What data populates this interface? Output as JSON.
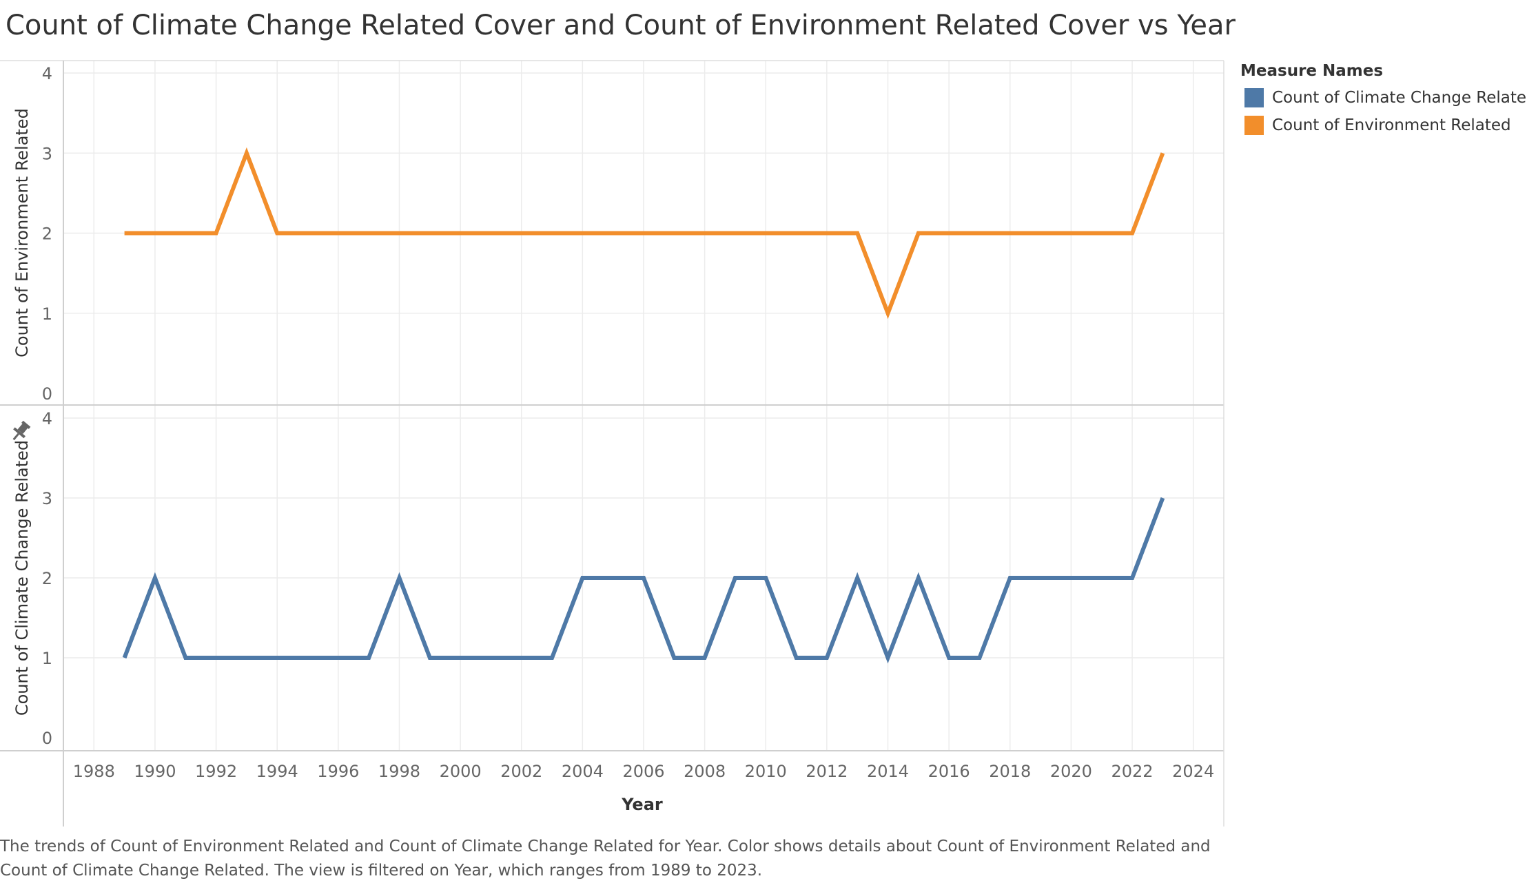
{
  "title": "Count of Climate Change Related Cover and Count of Environment Related Cover vs Year",
  "legend": {
    "title": "Measure Names",
    "items": [
      {
        "label": "Count of Climate Change Related",
        "color": "#4e79a7"
      },
      {
        "label": "Count of Environment Related",
        "color": "#f28e2b"
      }
    ]
  },
  "caption": [
    "The trends of Count of Environment Related and Count of Climate Change Related for Year.  Color shows details about Count of Environment Related and",
    "Count of Climate Change Related. The view is filtered on Year, which ranges from 1989 to 2023."
  ],
  "chart_data": {
    "type": "line",
    "xlabel": "Year",
    "xlim": [
      1987,
      2025
    ],
    "xticks": [
      1988,
      1990,
      1992,
      1994,
      1996,
      1998,
      2000,
      2002,
      2004,
      2006,
      2008,
      2010,
      2012,
      2014,
      2016,
      2018,
      2020,
      2022,
      2024
    ],
    "x": [
      1989,
      1990,
      1991,
      1992,
      1993,
      1994,
      1995,
      1996,
      1997,
      1998,
      1999,
      2000,
      2001,
      2002,
      2003,
      2004,
      2005,
      2006,
      2007,
      2008,
      2009,
      2010,
      2011,
      2012,
      2013,
      2014,
      2015,
      2016,
      2017,
      2018,
      2019,
      2020,
      2021,
      2022,
      2023
    ],
    "grid": true,
    "legend_position": "top-right",
    "panels": [
      {
        "ylabel": "Count of Environment Related",
        "ylim": [
          0,
          4
        ],
        "yticks": [
          0,
          1,
          2,
          3,
          4
        ],
        "series": [
          {
            "name": "Count of Environment Related",
            "color": "#f28e2b",
            "values": [
              2,
              2,
              2,
              2,
              3,
              2,
              2,
              2,
              2,
              2,
              2,
              2,
              2,
              2,
              2,
              2,
              2,
              2,
              2,
              2,
              2,
              2,
              2,
              2,
              2,
              1,
              2,
              2,
              2,
              2,
              2,
              2,
              2,
              2,
              3
            ]
          }
        ]
      },
      {
        "ylabel": "Count of Climate Change Related",
        "ylim": [
          0,
          4
        ],
        "yticks": [
          0,
          1,
          2,
          3,
          4
        ],
        "pin_icon": "pin-icon",
        "series": [
          {
            "name": "Count of Climate Change Related",
            "color": "#4e79a7",
            "values": [
              1,
              2,
              1,
              1,
              1,
              1,
              1,
              1,
              1,
              2,
              1,
              1,
              1,
              1,
              1,
              2,
              2,
              2,
              1,
              1,
              2,
              2,
              1,
              1,
              2,
              1,
              2,
              1,
              1,
              2,
              2,
              2,
              2,
              2,
              3
            ]
          }
        ]
      }
    ]
  }
}
